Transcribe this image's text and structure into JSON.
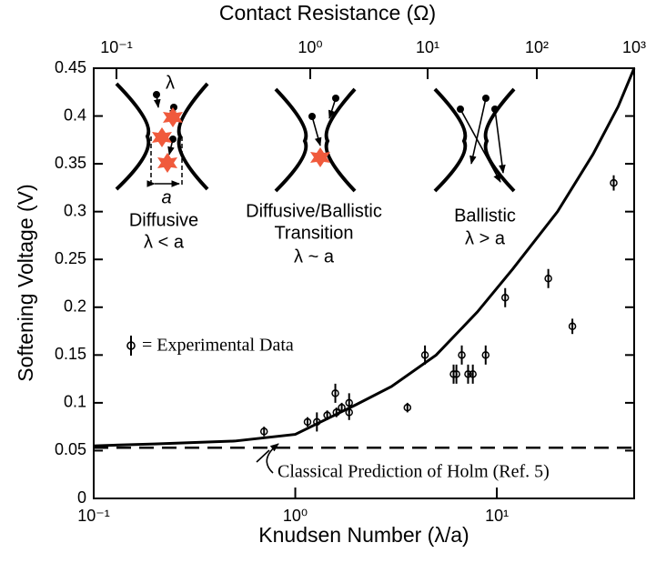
{
  "chart_data": {
    "type": "scatter",
    "xlabel": "Knudsen Number (λ/a)",
    "ylabel": "Softening Voltage (V)",
    "x2label": "Contact Resistance (Ω)",
    "xscale": "log",
    "xlim": [
      0.1,
      48
    ],
    "ylim": [
      0,
      0.45
    ],
    "xticks": [
      {
        "value": 0.1,
        "label": "10⁻¹"
      },
      {
        "value": 1,
        "label": "10⁰"
      },
      {
        "value": 10,
        "label": "10¹"
      }
    ],
    "yticks": [
      0,
      0.05,
      0.1,
      0.15,
      0.2,
      0.25,
      0.3,
      0.35,
      0.4,
      0.45
    ],
    "x2ticks": [
      {
        "value": 0.1,
        "label": "10⁻¹"
      },
      {
        "value": 1,
        "label": "10⁰"
      },
      {
        "value": 10,
        "label": "10¹"
      },
      {
        "value": 100,
        "label": "10²"
      },
      {
        "value": 1000,
        "label": "10³"
      }
    ],
    "series": [
      {
        "name": "= Experimental Data",
        "type": "scatter",
        "color": "#000000",
        "x": [
          0.7,
          1.15,
          1.28,
          1.44,
          1.58,
          1.6,
          1.7,
          1.85,
          1.85,
          3.6,
          4.4,
          6.1,
          6.3,
          6.7,
          7.2,
          7.6,
          8.8,
          11,
          18,
          23.7,
          38
        ],
        "values": [
          0.07,
          0.08,
          0.08,
          0.087,
          0.11,
          0.09,
          0.095,
          0.1,
          0.09,
          0.095,
          0.15,
          0.13,
          0.13,
          0.15,
          0.13,
          0.13,
          0.15,
          0.21,
          0.23,
          0.18,
          0.33
        ],
        "errors": [
          0.005,
          0.005,
          0.01,
          0.005,
          0.01,
          0.005,
          0.005,
          0.01,
          0.008,
          0.005,
          0.01,
          0.01,
          0.01,
          0.01,
          0.01,
          0.01,
          0.01,
          0.01,
          0.01,
          0.008,
          0.008
        ]
      },
      {
        "type": "line",
        "color": "#000000",
        "x": [
          0.1,
          0.2,
          0.5,
          1,
          2,
          3,
          5,
          8,
          12,
          20,
          30,
          40,
          48
        ],
        "values": [
          0.055,
          0.057,
          0.06,
          0.067,
          0.098,
          0.117,
          0.15,
          0.195,
          0.24,
          0.3,
          0.36,
          0.41,
          0.45
        ]
      },
      {
        "type": "hline",
        "color": "#000000",
        "values": [
          0.053
        ]
      }
    ],
    "annotations": [
      "Diffusive",
      "λ < a",
      "Diffusive/Ballistic",
      "Transition",
      "λ ~ a",
      "Ballistic",
      "λ > a",
      "Classical Prediction of Holm (Ref. 5)",
      "λ",
      "a"
    ]
  }
}
